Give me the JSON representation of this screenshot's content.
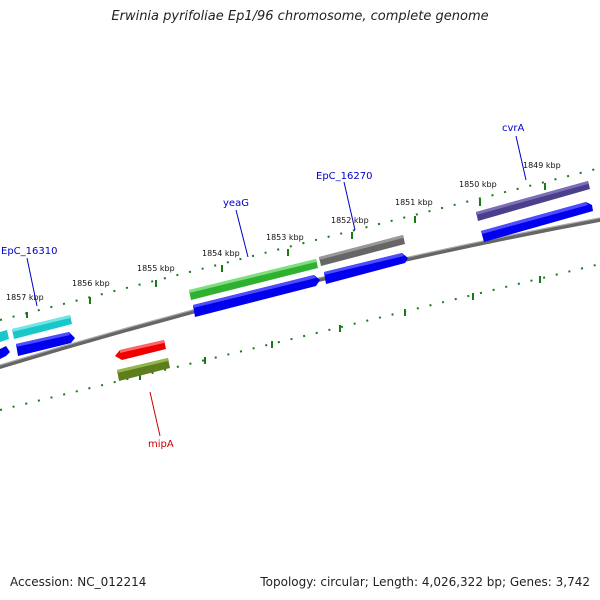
{
  "title": "Erwinia pyrifoliae Ep1/96 chromosome, complete genome",
  "footer": {
    "accession": "Accession: NC_012214",
    "summary": "Topology: circular; Length: 4,026,322 bp; Genes: 3,742"
  },
  "colors": {
    "backbone": "#777777",
    "tick": "#1a7a1a",
    "label_blue": "#0000cc",
    "label_red": "#cc0000"
  },
  "ticks": [
    "1849 kbp",
    "1850 kbp",
    "1851 kbp",
    "1852 kbp",
    "1853 kbp",
    "1854 kbp",
    "1855 kbp",
    "1856 kbp",
    "1857 kbp"
  ],
  "features": [
    {
      "id": "cvrA",
      "label": "cvrA",
      "label_color": "#0000cc",
      "color": "#4b3f8c"
    },
    {
      "id": "EpC_16270",
      "label": "EpC_16270",
      "label_color": "#0000cc",
      "color": "#6a6a6a"
    },
    {
      "id": "yeaG",
      "label": "yeaG",
      "label_color": "#0000cc",
      "color": "#3fbf3f"
    },
    {
      "id": "EpC_16310",
      "label": "EpC_16310",
      "label_color": "#0000cc",
      "color": "#18c8c8"
    },
    {
      "id": "mipA",
      "label": "mipA",
      "label_color": "#cc0000",
      "color": "#ee0000"
    }
  ]
}
